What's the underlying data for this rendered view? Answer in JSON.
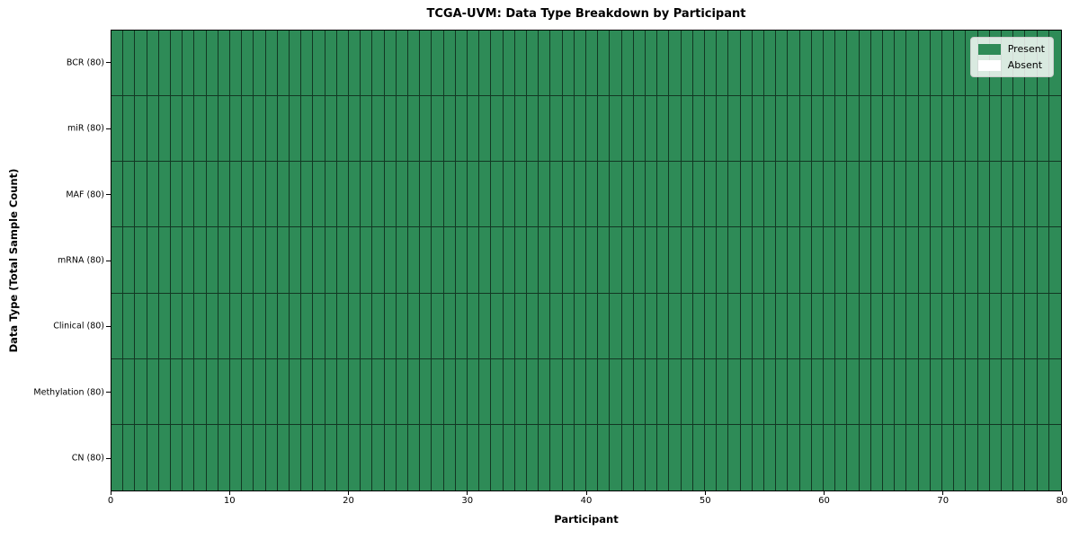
{
  "figure": {
    "title": "TCGA-UVM: Data Type Breakdown by Participant",
    "xlabel": "Participant",
    "ylabel": "Data Type (Total Sample Count)"
  },
  "legend": {
    "items": [
      {
        "label": "Present",
        "color": "#2e8b57"
      },
      {
        "label": "Absent",
        "color": "#ffffff"
      }
    ],
    "position": "upper right"
  },
  "chart_data": {
    "type": "heatmap",
    "title": "TCGA-UVM: Data Type Breakdown by Participant",
    "xlabel": "Participant",
    "ylabel": "Data Type (Total Sample Count)",
    "x_range": [
      0,
      80
    ],
    "x_ticks": [
      0,
      10,
      20,
      30,
      40,
      50,
      60,
      70,
      80
    ],
    "n_participants": 80,
    "rows": [
      {
        "label": "BCR (80)",
        "total_samples": 80,
        "present_count": 80,
        "absent_count": 0
      },
      {
        "label": "miR (80)",
        "total_samples": 80,
        "present_count": 80,
        "absent_count": 0
      },
      {
        "label": "MAF (80)",
        "total_samples": 80,
        "present_count": 80,
        "absent_count": 0
      },
      {
        "label": "mRNA (80)",
        "total_samples": 80,
        "present_count": 80,
        "absent_count": 0
      },
      {
        "label": "Clinical (80)",
        "total_samples": 80,
        "present_count": 80,
        "absent_count": 0
      },
      {
        "label": "Methylation (80)",
        "total_samples": 80,
        "present_count": 80,
        "absent_count": 0
      },
      {
        "label": "CN (80)",
        "total_samples": 80,
        "present_count": 80,
        "absent_count": 0
      }
    ],
    "all_cells_present": true,
    "cell_value_for_all": "Present",
    "colors": {
      "present": "#2e8b57",
      "absent": "#ffffff",
      "cell_edge": "rgba(0,0,0,0.60)",
      "spine": "#000000"
    },
    "legend_entries": [
      "Present",
      "Absent"
    ],
    "legend_position": "upper right",
    "grid": "cell-borders"
  }
}
